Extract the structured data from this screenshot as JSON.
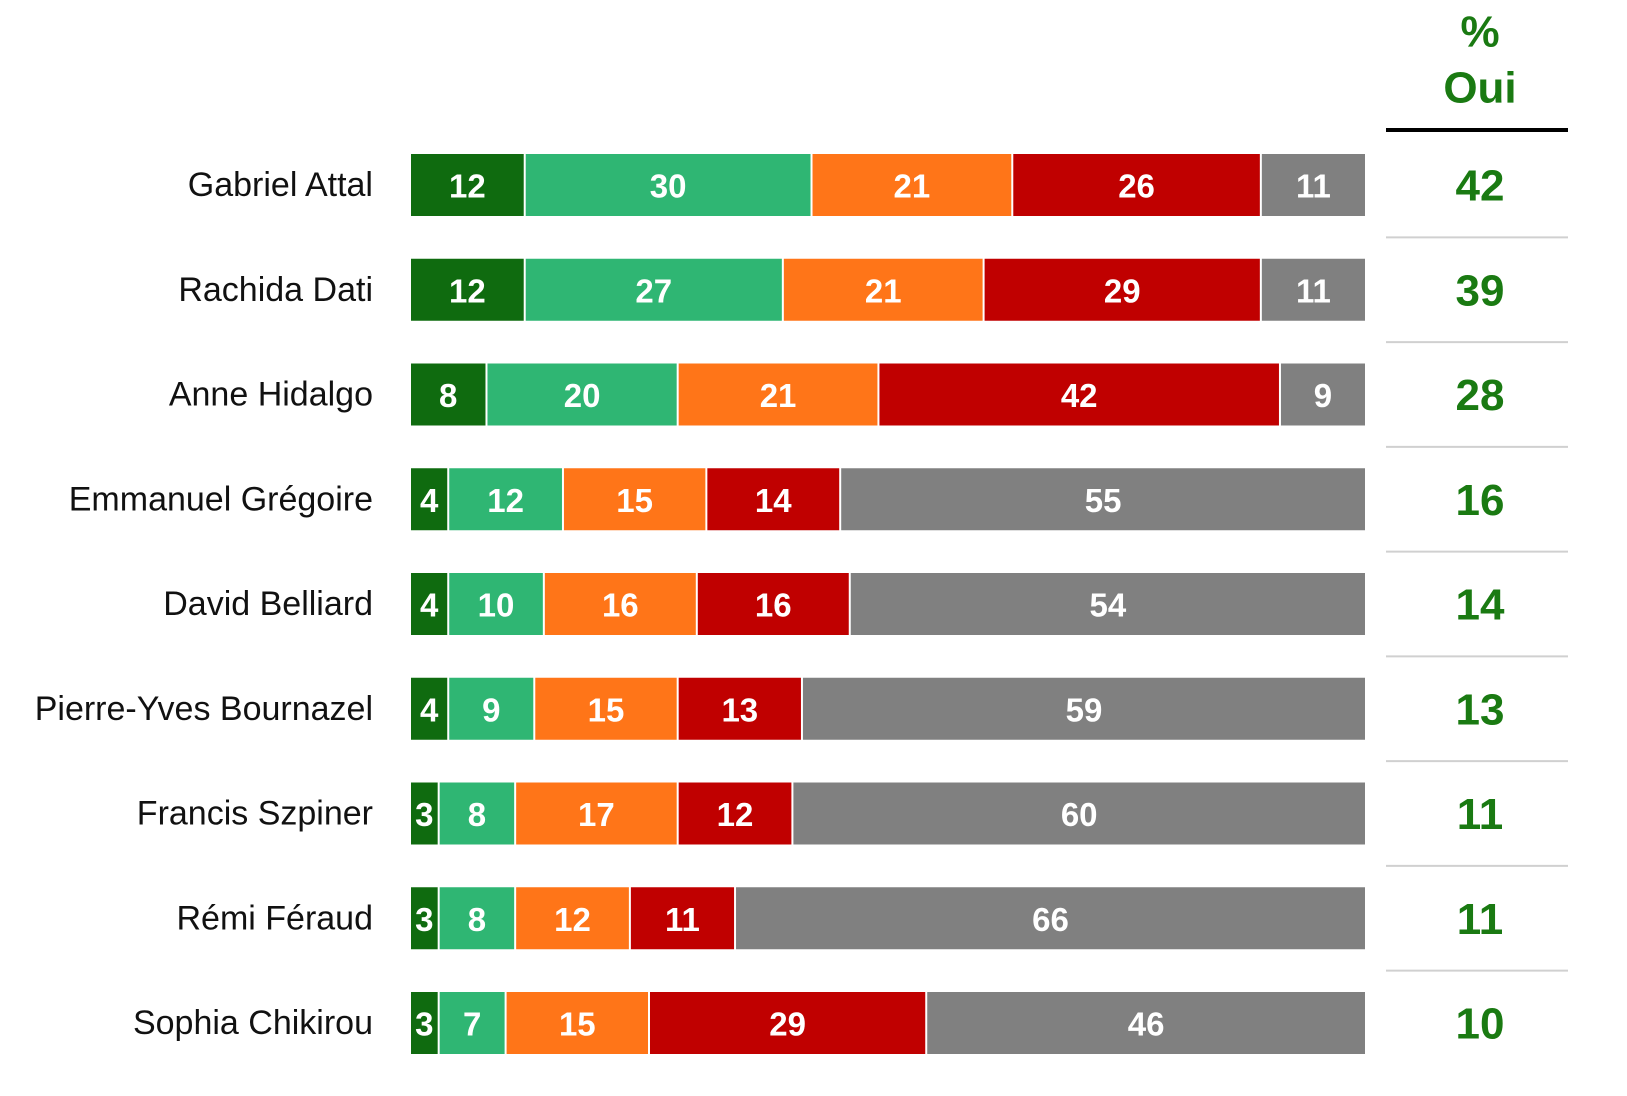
{
  "chart_data": {
    "type": "stacked-bar",
    "orientation": "horizontal",
    "categories": [
      "Gabriel Attal",
      "Rachida Dati",
      "Anne Hidalgo",
      "Emmanuel Grégoire",
      "David Belliard",
      "Pierre-Yves Bournazel",
      "Francis Szpiner",
      "Rémi Féraud",
      "Sophia Chikirou"
    ],
    "xlim": [
      0,
      100
    ],
    "series": [
      {
        "color": "#0f6b0f",
        "values": [
          12,
          12,
          8,
          4,
          4,
          4,
          3,
          3,
          3
        ]
      },
      {
        "color": "#2fb673",
        "values": [
          30,
          27,
          20,
          12,
          10,
          9,
          8,
          8,
          7
        ]
      },
      {
        "color": "#ff7518",
        "values": [
          21,
          21,
          21,
          15,
          16,
          15,
          17,
          12,
          15
        ]
      },
      {
        "color": "#c00000",
        "values": [
          26,
          29,
          42,
          14,
          16,
          13,
          12,
          11,
          29
        ]
      },
      {
        "color": "#808080",
        "values": [
          11,
          11,
          9,
          55,
          54,
          59,
          60,
          66,
          46
        ]
      }
    ],
    "side_column": {
      "title_lines": [
        "%",
        "Oui"
      ],
      "color": "#1a7a12",
      "values": [
        42,
        39,
        28,
        16,
        14,
        13,
        11,
        11,
        10
      ]
    }
  }
}
